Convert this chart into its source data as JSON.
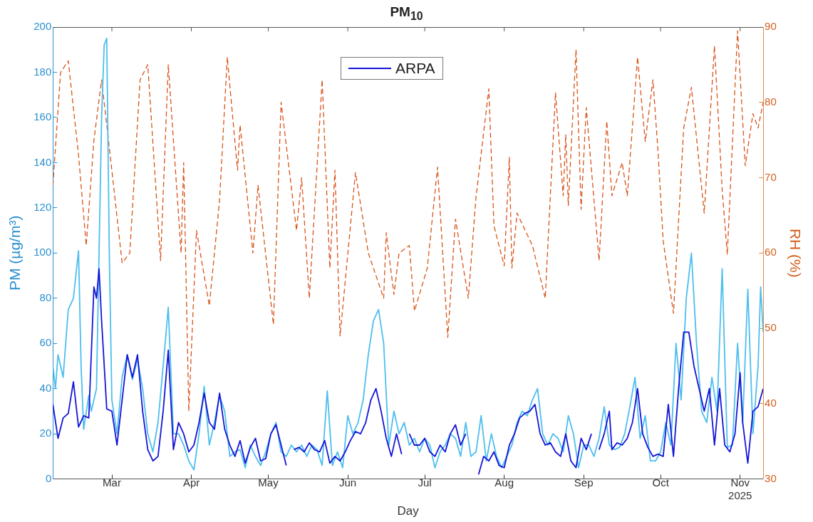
{
  "chart_data": {
    "type": "line",
    "title": "PM$_{10}$",
    "xlabel": "Day",
    "ylabel": "PM (µg/m³)",
    "y2label": "RH (%)",
    "xlim": [
      "2025-02-06",
      "2025-11-10"
    ],
    "xticks": [
      {
        "value": "2025-03-01",
        "label": "Mar"
      },
      {
        "value": "2025-04-01",
        "label": "Apr"
      },
      {
        "value": "2025-05-01",
        "label": "May"
      },
      {
        "value": "2025-06-01",
        "label": "Jun"
      },
      {
        "value": "2025-07-01",
        "label": "Jul"
      },
      {
        "value": "2025-08-01",
        "label": "Aug"
      },
      {
        "value": "2025-09-01",
        "label": "Sep"
      },
      {
        "value": "2025-10-01",
        "label": "Oct"
      },
      {
        "value": "2025-11-01",
        "label": "Nov\n2025"
      }
    ],
    "ylim": [
      0,
      200
    ],
    "yticks": [
      0,
      20,
      40,
      60,
      80,
      100,
      120,
      140,
      160,
      180,
      200
    ],
    "y2lim": [
      30,
      90
    ],
    "y2ticks": [
      30,
      40,
      50,
      60,
      70,
      80,
      90
    ],
    "grid": false,
    "legend": "top",
    "marker": "none",
    "series": [
      {
        "name": "ARPA",
        "color": "#1414d8",
        "line_style": "solid",
        "x": [
          "2025-02-06",
          "2025-02-08",
          "2025-02-10",
          "2025-02-12",
          "2025-02-14",
          "2025-02-16",
          "2025-02-18",
          "2025-02-20",
          "2025-02-22",
          "2025-02-23",
          "2025-02-24",
          "2025-02-25",
          "2025-02-27",
          "2025-03-01",
          "2025-03-03",
          "2025-03-05",
          "2025-03-07",
          "2025-03-09",
          "2025-03-11",
          "2025-03-13",
          "2025-03-15",
          "2025-03-17",
          "2025-03-19",
          "2025-03-21",
          "2025-03-23",
          "2025-03-25",
          "2025-03-27",
          "2025-03-29",
          "2025-03-31",
          "2025-04-02",
          "2025-04-04",
          "2025-04-06",
          "2025-04-08",
          "2025-04-10",
          "2025-04-12",
          "2025-04-14",
          "2025-04-16",
          "2025-04-18",
          "2025-04-20",
          "2025-04-22",
          "2025-04-24",
          "2025-04-26",
          "2025-04-28",
          "2025-04-30",
          "2025-05-02",
          "2025-05-04",
          "2025-05-06",
          "2025-05-08",
          "2025-05-09",
          "2025-05-11",
          "2025-05-13",
          "2025-05-15",
          "2025-05-17",
          "2025-05-19",
          "2025-05-21",
          "2025-05-23",
          "2025-05-25",
          "2025-05-27",
          "2025-05-29",
          "2025-05-31",
          "2025-06-02",
          "2025-06-04",
          "2025-06-06",
          "2025-06-08",
          "2025-06-10",
          "2025-06-12",
          "2025-06-14",
          "2025-06-16",
          "2025-06-18",
          "2025-06-20",
          "2025-06-22",
          "2025-06-23",
          "2025-06-25",
          "2025-06-27",
          "2025-06-29",
          "2025-07-01",
          "2025-07-03",
          "2025-07-05",
          "2025-07-07",
          "2025-07-09",
          "2025-07-11",
          "2025-07-13",
          "2025-07-15",
          "2025-07-17",
          "2025-07-18",
          "2025-07-22",
          "2025-07-24",
          "2025-07-26",
          "2025-07-28",
          "2025-07-30",
          "2025-08-01",
          "2025-08-03",
          "2025-08-05",
          "2025-08-07",
          "2025-08-09",
          "2025-08-11",
          "2025-08-13",
          "2025-08-15",
          "2025-08-17",
          "2025-08-19",
          "2025-08-21",
          "2025-08-23",
          "2025-08-25",
          "2025-08-27",
          "2025-08-29",
          "2025-08-31",
          "2025-09-02",
          "2025-09-04",
          "2025-09-05",
          "2025-09-07",
          "2025-09-09",
          "2025-09-11",
          "2025-09-12",
          "2025-09-14",
          "2025-09-16",
          "2025-09-18",
          "2025-09-20",
          "2025-09-22",
          "2025-09-24",
          "2025-09-26",
          "2025-09-28",
          "2025-09-30",
          "2025-10-02",
          "2025-10-04",
          "2025-10-06",
          "2025-10-08",
          "2025-10-10",
          "2025-10-12",
          "2025-10-14",
          "2025-10-16",
          "2025-10-18",
          "2025-10-20",
          "2025-10-22",
          "2025-10-24",
          "2025-10-26",
          "2025-10-28",
          "2025-10-30",
          "2025-11-01",
          "2025-11-02",
          "2025-11-04",
          "2025-11-06",
          "2025-11-08",
          "2025-11-10"
        ],
        "values": [
          33,
          18,
          27,
          29,
          43,
          23,
          28,
          27,
          85,
          80,
          93,
          70,
          31,
          30,
          15,
          35,
          55,
          45,
          55,
          30,
          13,
          8,
          10,
          30,
          57,
          13,
          25,
          20,
          12,
          15,
          25,
          38,
          25,
          22,
          38,
          22,
          15,
          10,
          17,
          7,
          14,
          18,
          8,
          9,
          20,
          24,
          15,
          6,
          null,
          13,
          14,
          12,
          16,
          13,
          12,
          17,
          7,
          10,
          8,
          12,
          17,
          21,
          20,
          25,
          35,
          40,
          30,
          18,
          10,
          20,
          11,
          null,
          20,
          15,
          15,
          18,
          12,
          10,
          15,
          12,
          20,
          24,
          15,
          20,
          null,
          2,
          10,
          8,
          12,
          6,
          5,
          15,
          20,
          27,
          29,
          30,
          33,
          20,
          15,
          16,
          12,
          10,
          20,
          8,
          5,
          18,
          13,
          20,
          null,
          13,
          20,
          30,
          13,
          16,
          15,
          18,
          25,
          40,
          20,
          14,
          10,
          11,
          10,
          33,
          10,
          40,
          65,
          65,
          50,
          40,
          30,
          40,
          15,
          40,
          15,
          12,
          20,
          47,
          25,
          7,
          30,
          32,
          40
        ]
      },
      {
        "color": "#4dbeee",
        "line_style": "solid",
        "x": [
          "2025-02-06",
          "2025-02-07",
          "2025-02-08",
          "2025-02-10",
          "2025-02-12",
          "2025-02-14",
          "2025-02-16",
          "2025-02-17",
          "2025-02-18",
          "2025-02-20",
          "2025-02-21",
          "2025-02-23",
          "2025-02-24",
          "2025-02-25",
          "2025-02-26",
          "2025-02-27",
          "2025-02-28",
          "2025-03-01",
          "2025-03-03",
          "2025-03-05",
          "2025-03-07",
          "2025-03-09",
          "2025-03-11",
          "2025-03-13",
          "2025-03-15",
          "2025-03-17",
          "2025-03-19",
          "2025-03-21",
          "2025-03-23",
          "2025-03-25",
          "2025-03-27",
          "2025-03-29",
          "2025-03-31",
          "2025-04-02",
          "2025-04-04",
          "2025-04-06",
          "2025-04-08",
          "2025-04-10",
          "2025-04-12",
          "2025-04-14",
          "2025-04-16",
          "2025-04-18",
          "2025-04-20",
          "2025-04-22",
          "2025-04-24",
          "2025-04-26",
          "2025-04-28",
          "2025-04-30",
          "2025-05-02",
          "2025-05-04",
          "2025-05-06",
          "2025-05-08",
          "2025-05-10",
          "2025-05-12",
          "2025-05-14",
          "2025-05-16",
          "2025-05-18",
          "2025-05-20",
          "2025-05-22",
          "2025-05-24",
          "2025-05-26",
          "2025-05-28",
          "2025-05-30",
          "2025-06-01",
          "2025-06-03",
          "2025-06-05",
          "2025-06-07",
          "2025-06-09",
          "2025-06-11",
          "2025-06-13",
          "2025-06-15",
          "2025-06-17",
          "2025-06-19",
          "2025-06-21",
          "2025-06-23",
          "2025-06-25",
          "2025-06-27",
          "2025-06-29",
          "2025-07-01",
          "2025-07-03",
          "2025-07-05",
          "2025-07-07",
          "2025-07-09",
          "2025-07-11",
          "2025-07-13",
          "2025-07-15",
          "2025-07-17",
          "2025-07-19",
          "2025-07-21",
          "2025-07-23",
          "2025-07-25",
          "2025-07-27",
          "2025-07-29",
          "2025-07-31",
          "2025-08-02",
          "2025-08-04",
          "2025-08-06",
          "2025-08-08",
          "2025-08-10",
          "2025-08-12",
          "2025-08-14",
          "2025-08-16",
          "2025-08-18",
          "2025-08-20",
          "2025-08-22",
          "2025-08-24",
          "2025-08-26",
          "2025-08-28",
          "2025-08-30",
          "2025-09-01",
          "2025-09-03",
          "2025-09-05",
          "2025-09-07",
          "2025-09-09",
          "2025-09-11",
          "2025-09-13",
          "2025-09-15",
          "2025-09-17",
          "2025-09-19",
          "2025-09-21",
          "2025-09-23",
          "2025-09-25",
          "2025-09-27",
          "2025-09-29",
          "2025-10-01",
          "2025-10-03",
          "2025-10-05",
          "2025-10-07",
          "2025-10-09",
          "2025-10-11",
          "2025-10-13",
          "2025-10-15",
          "2025-10-17",
          "2025-10-19",
          "2025-10-21",
          "2025-10-23",
          "2025-10-25",
          "2025-10-27",
          "2025-10-29",
          "2025-10-31",
          "2025-11-02",
          "2025-11-04",
          "2025-11-06",
          "2025-11-08",
          "2025-11-09",
          "2025-11-10"
        ],
        "values": [
          50,
          40,
          55,
          45,
          75,
          80,
          101,
          50,
          22,
          37,
          30,
          40,
          100,
          160,
          192,
          195,
          100,
          35,
          20,
          45,
          55,
          44,
          53,
          40,
          20,
          12,
          25,
          50,
          76,
          20,
          20,
          15,
          8,
          4,
          20,
          41,
          15,
          25,
          37,
          30,
          10,
          12,
          13,
          5,
          15,
          10,
          6,
          12,
          20,
          25,
          12,
          10,
          15,
          12,
          15,
          10,
          15,
          13,
          6,
          39,
          6,
          12,
          5,
          28,
          20,
          25,
          35,
          55,
          70,
          75,
          60,
          15,
          30,
          20,
          25,
          15,
          18,
          12,
          18,
          15,
          5,
          12,
          15,
          20,
          18,
          10,
          25,
          10,
          12,
          28,
          8,
          20,
          10,
          5,
          10,
          15,
          25,
          30,
          28,
          35,
          40,
          20,
          15,
          20,
          18,
          12,
          28,
          20,
          5,
          15,
          15,
          10,
          18,
          32,
          15,
          13,
          14,
          20,
          32,
          45,
          18,
          28,
          8,
          8,
          12,
          25,
          15,
          60,
          35,
          80,
          100,
          60,
          30,
          25,
          45,
          30,
          93,
          14,
          15,
          60,
          25,
          84,
          20,
          50,
          85,
          65
        ]
      },
      {
        "color": "#d95319",
        "axis": "y2",
        "line_style": "dashed",
        "x": [
          "2025-02-06",
          "2025-02-09",
          "2025-02-12",
          "2025-02-16",
          "2025-02-19",
          "2025-02-22",
          "2025-02-25",
          "2025-02-28",
          "2025-03-05",
          "2025-03-08",
          "2025-03-12",
          "2025-03-15",
          "2025-03-20",
          "2025-03-23",
          "2025-03-28",
          "2025-03-29",
          "2025-03-31",
          "2025-04-03",
          "2025-04-08",
          "2025-04-12",
          "2025-04-15",
          "2025-04-19",
          "2025-04-20",
          "2025-04-25",
          "2025-04-27",
          "2025-05-03",
          "2025-05-06",
          "2025-05-12",
          "2025-05-14",
          "2025-05-17",
          "2025-05-22",
          "2025-05-25",
          "2025-05-27",
          "2025-05-29",
          "2025-06-04",
          "2025-06-09",
          "2025-06-15",
          "2025-06-16",
          "2025-06-19",
          "2025-06-21",
          "2025-06-25",
          "2025-06-27",
          "2025-07-02",
          "2025-07-06",
          "2025-07-10",
          "2025-07-13",
          "2025-07-18",
          "2025-07-21",
          "2025-07-26",
          "2025-07-28",
          "2025-08-01",
          "2025-08-03",
          "2025-08-04",
          "2025-08-06",
          "2025-08-12",
          "2025-08-17",
          "2025-08-21",
          "2025-08-24",
          "2025-08-25",
          "2025-08-26",
          "2025-08-29",
          "2025-08-31",
          "2025-09-02",
          "2025-09-07",
          "2025-09-10",
          "2025-09-12",
          "2025-09-16",
          "2025-09-18",
          "2025-09-22",
          "2025-09-25",
          "2025-09-28",
          "2025-09-30",
          "2025-10-02",
          "2025-10-06",
          "2025-10-10",
          "2025-10-13",
          "2025-10-18",
          "2025-10-22",
          "2025-10-25",
          "2025-10-27",
          "2025-10-31",
          "2025-11-03",
          "2025-11-06",
          "2025-11-08",
          "2025-11-10"
        ],
        "values": [
          69,
          84,
          85.5,
          73,
          61,
          75,
          83,
          74,
          58.7,
          60,
          83,
          85,
          59,
          85,
          60,
          72,
          39,
          63,
          53,
          67,
          86,
          71,
          77,
          60,
          69,
          50.5,
          80,
          63,
          70,
          54,
          83,
          58,
          71,
          49,
          70.7,
          60,
          54,
          62.7,
          54.5,
          60,
          61,
          52.3,
          58,
          71.4,
          48.8,
          64.5,
          54,
          67.4,
          81.8,
          63.6,
          58.3,
          72.7,
          58,
          65.3,
          61,
          54,
          81.3,
          67.6,
          75.7,
          66.3,
          87,
          65.8,
          79.3,
          59,
          77.5,
          67.6,
          72,
          67.6,
          86,
          74.8,
          83,
          73.4,
          61.6,
          52,
          76.6,
          82,
          65.3,
          87.5,
          68.4,
          59.8,
          89.5,
          71.6,
          78.5,
          76.6,
          80
        ]
      }
    ]
  }
}
